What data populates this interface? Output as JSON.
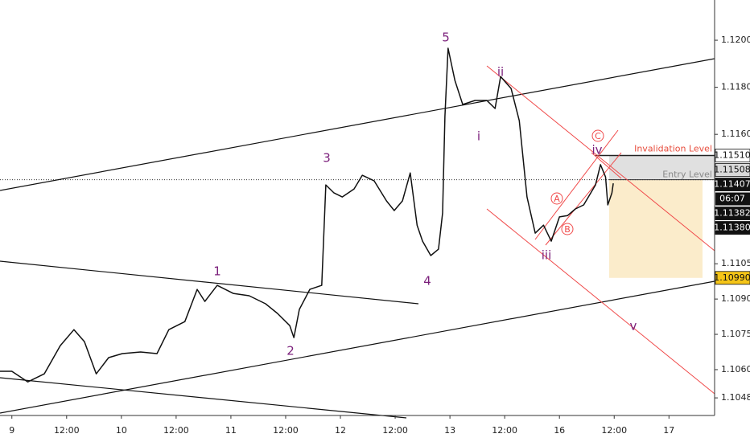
{
  "chart_data": {
    "type": "line",
    "x": [
      -2.6,
      0,
      3.5,
      7.1,
      10.6,
      13.6,
      15.9,
      18.5,
      21.2,
      24.2,
      28.2,
      31.8,
      34.4,
      37.9,
      40.6,
      42.3,
      45,
      48.5,
      52,
      55.6,
      58.2,
      60.9,
      61.8,
      63,
      65.3,
      67.9,
      68.8,
      70.6,
      72.4,
      75,
      76.8,
      79.4,
      82.1,
      83.8,
      85.6,
      87.3,
      88.8,
      90,
      91.8,
      93.5,
      94.4,
      94.9,
      95.6,
      97.1,
      98.8,
      101.5,
      104.1,
      105.9,
      107.1,
      109.4,
      111.2,
      112.9,
      114.7,
      116.5,
      118.2,
      120,
      121.8,
      123.5,
      125.3,
      127.9,
      129,
      130.1,
      130.6,
      131.5,
      131.8
    ],
    "series": [
      {
        "color": "#111111",
        "values": [
          1.10593,
          1.10593,
          1.10548,
          1.10582,
          1.10702,
          1.1077,
          1.10719,
          1.10582,
          1.10651,
          1.10668,
          1.10675,
          1.10668,
          1.1077,
          1.10804,
          1.10941,
          1.1089,
          1.10958,
          1.10924,
          1.10914,
          1.1088,
          1.10839,
          1.10787,
          1.10736,
          1.10856,
          1.10941,
          1.10958,
          1.11385,
          1.11351,
          1.11334,
          1.11368,
          1.11426,
          1.11402,
          1.11317,
          1.11276,
          1.11317,
          1.11436,
          1.11214,
          1.11146,
          1.11085,
          1.11112,
          1.11266,
          1.11676,
          1.11966,
          1.11829,
          1.11727,
          1.11744,
          1.11744,
          1.1171,
          1.11846,
          1.11795,
          1.11658,
          1.11334,
          1.1118,
          1.11214,
          1.11146,
          1.11249,
          1.11255,
          1.11283,
          1.113,
          1.11385,
          1.11471,
          1.11419,
          1.113,
          1.11351,
          1.11392
        ]
      }
    ],
    "xlim": [
      -2.6,
      154
    ],
    "xticks": [
      {
        "value": 0,
        "label": "9"
      },
      {
        "value": 12,
        "label": "12:00"
      },
      {
        "value": 24,
        "label": "10"
      },
      {
        "value": 36,
        "label": "12:00"
      },
      {
        "value": 48,
        "label": "11"
      },
      {
        "value": 60,
        "label": "12:00"
      },
      {
        "value": 72,
        "label": "12"
      },
      {
        "value": 84,
        "label": "12:00"
      },
      {
        "value": 96,
        "label": "13"
      },
      {
        "value": 108,
        "label": "12:00"
      },
      {
        "value": 120,
        "label": "16"
      },
      {
        "value": 132,
        "label": "12:00"
      },
      {
        "value": 144,
        "label": "17"
      }
    ],
    "ylim": [
      1.10412,
      1.12171
    ],
    "yticks": [
      {
        "value": 1.12,
        "label": "1.12000"
      },
      {
        "value": 1.118,
        "label": "1.11800"
      },
      {
        "value": 1.116,
        "label": "1.11600"
      },
      {
        "value": 1.1105,
        "label": "1.11050"
      },
      {
        "value": 1.109,
        "label": "1.10900"
      },
      {
        "value": 1.1075,
        "label": "1.10750"
      },
      {
        "value": 1.106,
        "label": "1.10600"
      },
      {
        "value": 1.1048,
        "label": "1.10480"
      }
    ],
    "price_labels": [
      {
        "value": 1.1151,
        "label": "1.11510",
        "bg": "#ffffff",
        "fg": "#111111"
      },
      {
        "value": 1.11508,
        "label": "1.11508",
        "bg": "#d9d9d9",
        "fg": "#111111"
      },
      {
        "value": 1.11407,
        "label": "1.11407",
        "bg": "#111111",
        "fg": "#ffffff"
      },
      {
        "value": 1.11382,
        "label": "1.11382",
        "bg": "#111111",
        "fg": "#ffffff"
      },
      {
        "value": 1.1138,
        "label": "1.11380",
        "bg": "#111111",
        "fg": "#ffffff"
      },
      {
        "value": 1.1099,
        "label": "1.10990",
        "bg": "#f5c518",
        "fg": "#111111"
      }
    ],
    "countdown": "06:07",
    "waves": [
      "1",
      "2",
      "3",
      "4",
      "5",
      "i",
      "ii",
      "iii",
      "iv",
      "v"
    ],
    "corrective": [
      "A",
      "B",
      "C"
    ],
    "invalidation": "Invalidation Level",
    "entry": "Entry Level"
  }
}
